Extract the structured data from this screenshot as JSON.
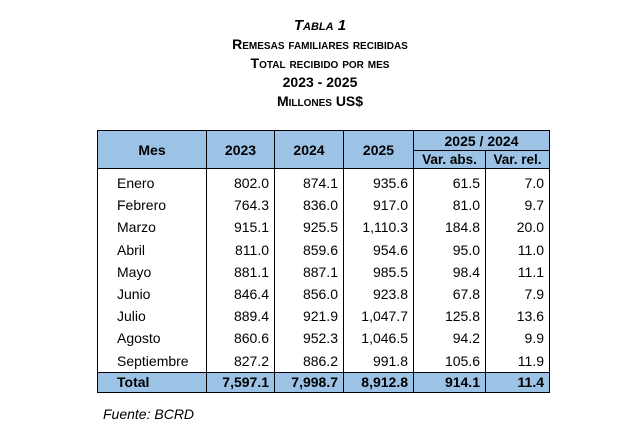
{
  "title": {
    "line1": "Tabla 1",
    "line2": "Remesas familiares recibidas",
    "line3": "Total recibido por mes",
    "line4": "2023 - 2025",
    "line5": "Millones US$"
  },
  "table": {
    "headers": {
      "mes": "Mes",
      "y2023": "2023",
      "y2024": "2024",
      "y2025": "2025",
      "group": "2025 / 2024",
      "var_abs": "Var. abs.",
      "var_rel": "Var. rel."
    },
    "rows": [
      {
        "mes": "Enero",
        "y2023": "802.0",
        "y2024": "874.1",
        "y2025": "935.6",
        "var_abs": "61.5",
        "var_rel": "7.0"
      },
      {
        "mes": "Febrero",
        "y2023": "764.3",
        "y2024": "836.0",
        "y2025": "917.0",
        "var_abs": "81.0",
        "var_rel": "9.7"
      },
      {
        "mes": "Marzo",
        "y2023": "915.1",
        "y2024": "925.5",
        "y2025": "1,110.3",
        "var_abs": "184.8",
        "var_rel": "20.0"
      },
      {
        "mes": "Abril",
        "y2023": "811.0",
        "y2024": "859.6",
        "y2025": "954.6",
        "var_abs": "95.0",
        "var_rel": "11.0"
      },
      {
        "mes": "Mayo",
        "y2023": "881.1",
        "y2024": "887.1",
        "y2025": "985.5",
        "var_abs": "98.4",
        "var_rel": "11.1"
      },
      {
        "mes": "Junio",
        "y2023": "846.4",
        "y2024": "856.0",
        "y2025": "923.8",
        "var_abs": "67.8",
        "var_rel": "7.9"
      },
      {
        "mes": "Julio",
        "y2023": "889.4",
        "y2024": "921.9",
        "y2025": "1,047.7",
        "var_abs": "125.8",
        "var_rel": "13.6"
      },
      {
        "mes": "Agosto",
        "y2023": "860.6",
        "y2024": "952.3",
        "y2025": "1,046.5",
        "var_abs": "94.2",
        "var_rel": "9.9"
      },
      {
        "mes": "Septiembre",
        "y2023": "827.2",
        "y2024": "886.2",
        "y2025": "991.8",
        "var_abs": "105.6",
        "var_rel": "11.9"
      }
    ],
    "total": {
      "mes": "Total",
      "y2023": "7,597.1",
      "y2024": "7,998.7",
      "y2025": "8,912.8",
      "var_abs": "914.1",
      "var_rel": "11.4"
    }
  },
  "source": "Fuente: BCRD"
}
